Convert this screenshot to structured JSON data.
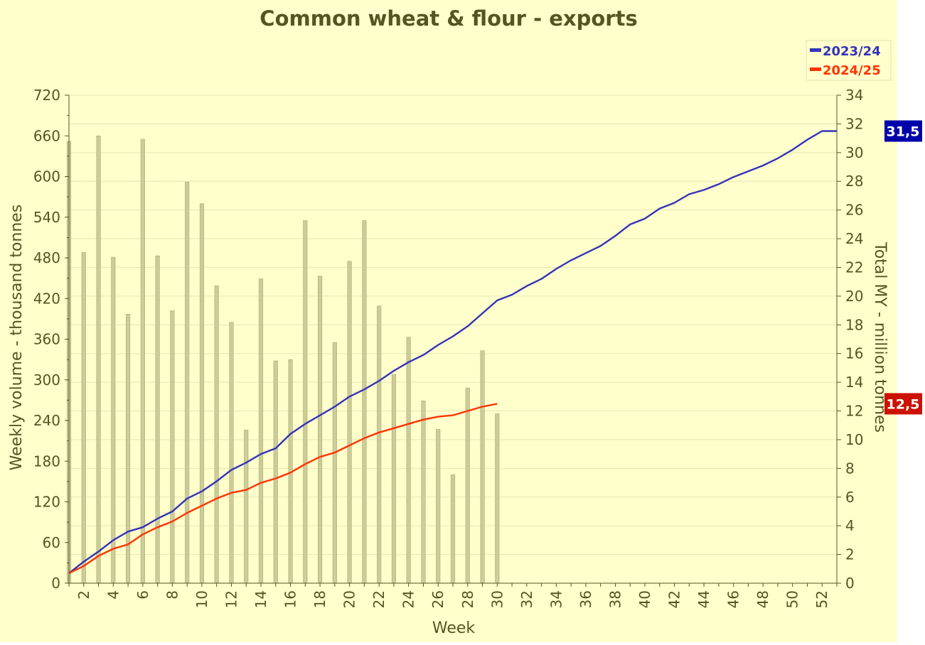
{
  "chart_data": {
    "type": "bar+line",
    "title": "Common wheat & flour - exports",
    "xlabel": "Week",
    "ylabel_left": "Weekly volume - thousand tonnes",
    "ylabel_right": "Total MY - million tonnes",
    "y_left_range": [
      0,
      720
    ],
    "y_left_ticks": [
      0,
      60,
      120,
      180,
      240,
      300,
      360,
      420,
      480,
      540,
      600,
      660,
      720
    ],
    "y_right_range": [
      0,
      34
    ],
    "y_right_ticks": [
      0,
      2,
      4,
      6,
      8,
      10,
      12,
      14,
      16,
      18,
      20,
      22,
      24,
      26,
      28,
      30,
      32,
      34
    ],
    "x_range": [
      1,
      53
    ],
    "x_tick_labels": [
      "2",
      "4",
      "6",
      "8",
      "10",
      "12",
      "14",
      "16",
      "18",
      "20",
      "22",
      "24",
      "26",
      "28",
      "30",
      "32",
      "34",
      "36",
      "38",
      "40",
      "42",
      "44",
      "46",
      "48",
      "50",
      "52"
    ],
    "grid": true,
    "legend_placement": "top-right",
    "bars": {
      "name": "",
      "color": "#cccc99",
      "weeks": [
        1,
        2,
        3,
        4,
        5,
        6,
        7,
        8,
        9,
        10,
        11,
        12,
        13,
        14,
        15,
        16,
        17,
        18,
        19,
        20,
        21,
        22,
        23,
        24,
        25,
        26,
        27,
        28,
        29,
        30
      ],
      "values": [
        652,
        488,
        660,
        481,
        397,
        655,
        483,
        402,
        592,
        560,
        439,
        385,
        226,
        449,
        328,
        330,
        535,
        453,
        355,
        475,
        535,
        409,
        308,
        363,
        269,
        227,
        160,
        288,
        343,
        250
      ]
    },
    "series": [
      {
        "name": "2023/24",
        "color": "#3333bb",
        "axis": "right",
        "weeks": [
          1,
          2,
          3,
          4,
          5,
          6,
          7,
          8,
          9,
          10,
          11,
          12,
          13,
          14,
          15,
          16,
          17,
          18,
          19,
          20,
          21,
          22,
          23,
          24,
          25,
          26,
          27,
          28,
          29,
          30,
          31,
          32,
          33,
          34,
          35,
          36,
          37,
          38,
          39,
          40,
          41,
          42,
          43,
          44,
          45,
          46,
          47,
          48,
          49,
          50,
          51,
          52,
          53
        ],
        "values": [
          0.7,
          1.5,
          2.2,
          3.0,
          3.6,
          3.9,
          4.5,
          5.0,
          5.9,
          6.4,
          7.1,
          7.9,
          8.4,
          9.0,
          9.4,
          10.4,
          11.1,
          11.7,
          12.3,
          13.0,
          13.5,
          14.1,
          14.8,
          15.4,
          15.9,
          16.6,
          17.2,
          17.9,
          18.8,
          19.7,
          20.1,
          20.7,
          21.2,
          21.9,
          22.5,
          23.0,
          23.5,
          24.2,
          25.0,
          25.4,
          26.1,
          26.5,
          27.1,
          27.4,
          27.8,
          28.3,
          28.7,
          29.1,
          29.6,
          30.2,
          30.9,
          31.5,
          31.5
        ],
        "end_label": "31,5"
      },
      {
        "name": "2024/25",
        "color": "#ff3300",
        "axis": "right",
        "weeks": [
          1,
          2,
          3,
          4,
          5,
          6,
          7,
          8,
          9,
          10,
          11,
          12,
          13,
          14,
          15,
          16,
          17,
          18,
          19,
          20,
          21,
          22,
          23,
          24,
          25,
          26,
          27,
          28,
          29,
          30
        ],
        "values": [
          0.7,
          1.2,
          1.9,
          2.4,
          2.7,
          3.4,
          3.9,
          4.3,
          4.9,
          5.4,
          5.9,
          6.3,
          6.5,
          7.0,
          7.3,
          7.7,
          8.3,
          8.8,
          9.1,
          9.6,
          10.1,
          10.5,
          10.8,
          11.1,
          11.4,
          11.6,
          11.7,
          12.0,
          12.3,
          12.5
        ],
        "end_label": "12,5"
      }
    ]
  }
}
